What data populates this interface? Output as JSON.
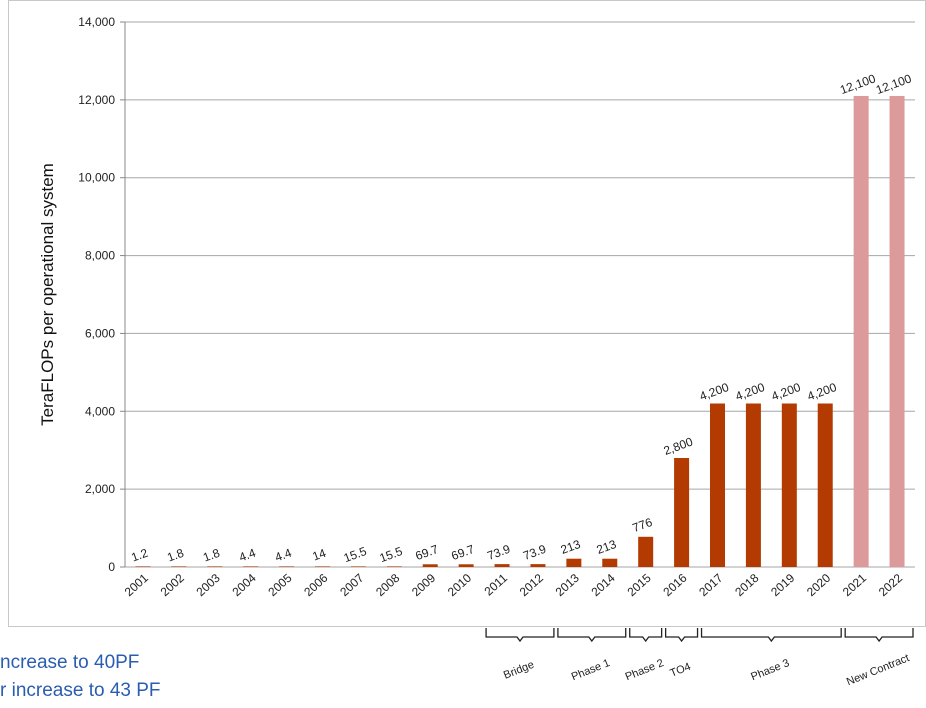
{
  "chart_data": {
    "type": "bar",
    "ylabel": "TeraFLOPs per operational system",
    "ylim": [
      0,
      14000
    ],
    "yticks": [
      0,
      2000,
      4000,
      6000,
      8000,
      10000,
      12000,
      14000
    ],
    "ytick_labels": [
      "0",
      "2,000",
      "4,000",
      "6,000",
      "8,000",
      "10,000",
      "12,000",
      "14,000"
    ],
    "grid": true,
    "categories": [
      "2001",
      "2002",
      "2003",
      "2004",
      "2005",
      "2006",
      "2007",
      "2008",
      "2009",
      "2010",
      "2011",
      "2012",
      "2013",
      "2014",
      "2015",
      "2016",
      "2017",
      "2018",
      "2019",
      "2020",
      "2021",
      "2022"
    ],
    "values": [
      1.2,
      1.8,
      1.8,
      4.4,
      4.4,
      14,
      15.5,
      15.5,
      69.7,
      69.7,
      73.9,
      73.9,
      213,
      213,
      776,
      2800,
      4200,
      4200,
      4200,
      4200,
      12100,
      12100
    ],
    "value_labels": [
      "1.2",
      "1.8",
      "1.8",
      "4.4",
      "4.4",
      "14",
      "15.5",
      "15.5",
      "69.7",
      "69.7",
      "73.9",
      "73.9",
      "213",
      "213",
      "776",
      "2,800",
      "4,200",
      "4,200",
      "4,200",
      "4,200",
      "12,100",
      "12,100"
    ],
    "bar_colors": {
      "current": "#b33a00",
      "new_contract": "#dc9a9a"
    },
    "new_contract_from_index": 20,
    "phases": [
      {
        "label": "Bridge",
        "from_index": 10,
        "to_index": 11
      },
      {
        "label": "Phase 1",
        "from_index": 12,
        "to_index": 13
      },
      {
        "label": "Phase 2",
        "from_index": 14,
        "to_index": 14
      },
      {
        "label": "TO4",
        "from_index": 15,
        "to_index": 15
      },
      {
        "label": "Phase 3",
        "from_index": 16,
        "to_index": 19
      },
      {
        "label": "New Contract",
        "from_index": 20,
        "to_index": 21
      }
    ]
  },
  "notes": [
    "ncrease to 40PF",
    "r increase to 43 PF"
  ]
}
